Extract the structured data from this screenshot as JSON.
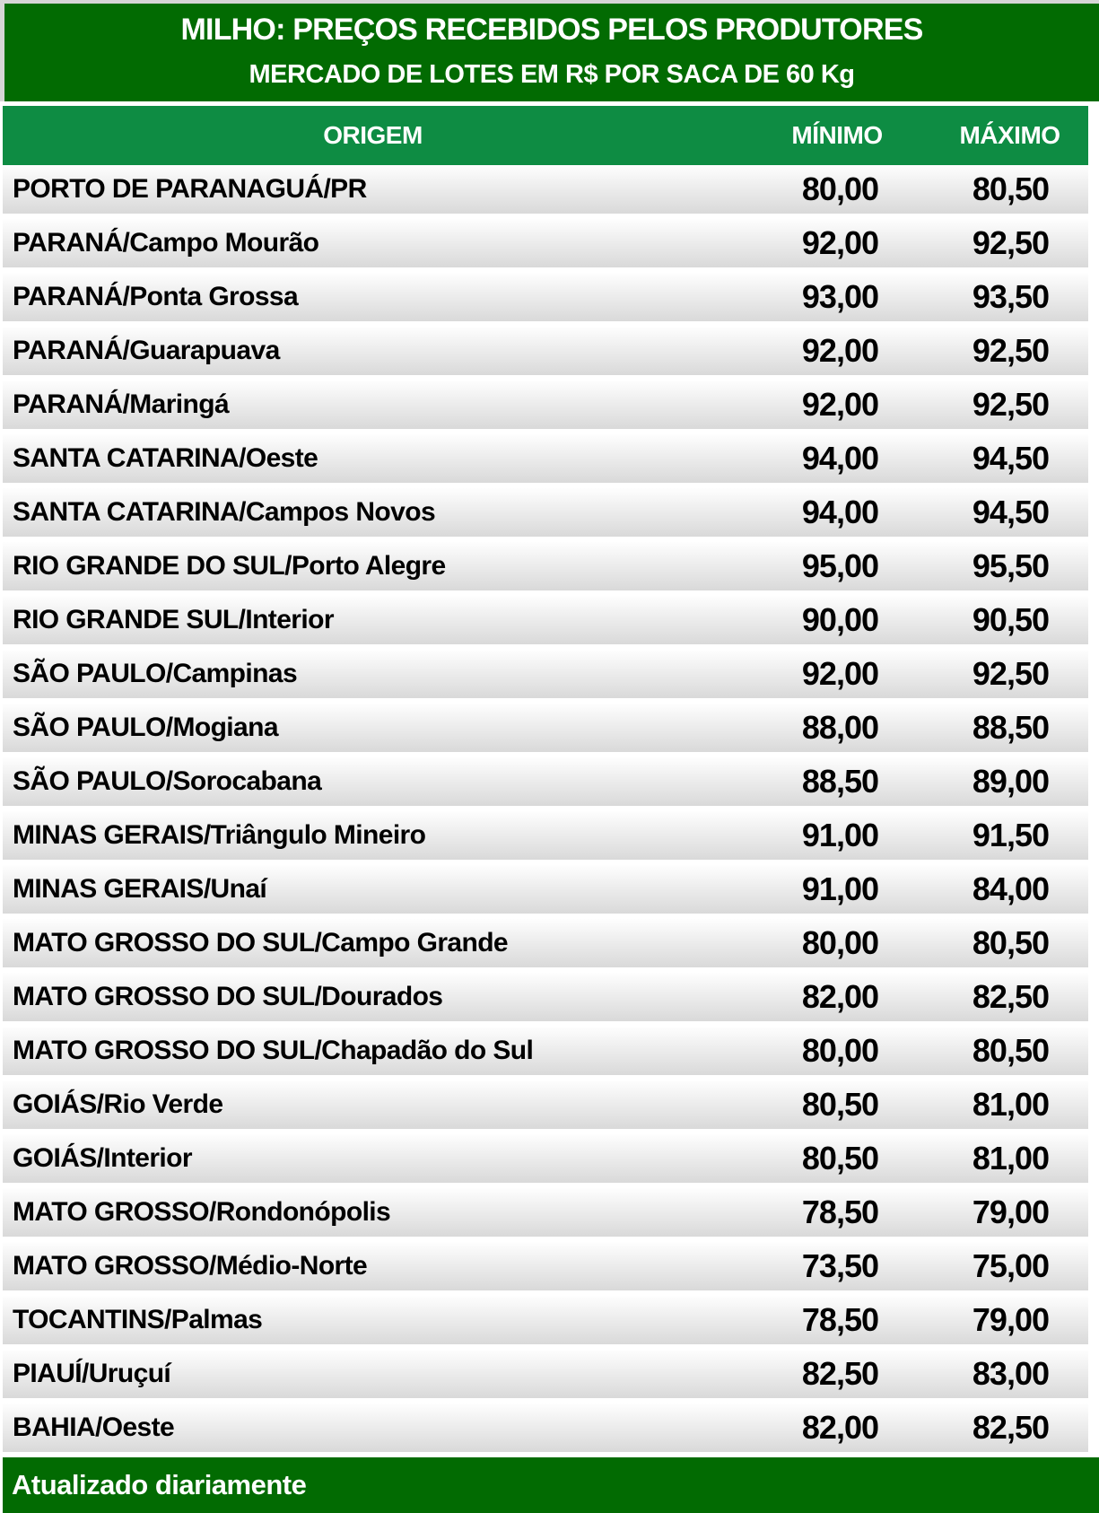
{
  "header": {
    "title": "MILHO: PREÇOS RECEBIDOS PELOS PRODUTORES",
    "subtitle": "MERCADO DE LOTES EM R$ POR SACA DE 60 Kg"
  },
  "table": {
    "columns": [
      "ORIGEM",
      "MÍNIMO",
      "MÁXIMO"
    ],
    "rows": [
      {
        "origem": "PORTO DE PARANAGUÁ/PR",
        "minimo": "80,00",
        "maximo": "80,50"
      },
      {
        "origem": "PARANÁ/Campo Mourão",
        "minimo": "92,00",
        "maximo": "92,50"
      },
      {
        "origem": "PARANÁ/Ponta Grossa",
        "minimo": "93,00",
        "maximo": "93,50"
      },
      {
        "origem": "PARANÁ/Guarapuava",
        "minimo": "92,00",
        "maximo": "92,50"
      },
      {
        "origem": "PARANÁ/Maringá",
        "minimo": "92,00",
        "maximo": "92,50"
      },
      {
        "origem": "SANTA CATARINA/Oeste",
        "minimo": "94,00",
        "maximo": "94,50"
      },
      {
        "origem": "SANTA CATARINA/Campos Novos",
        "minimo": "94,00",
        "maximo": "94,50"
      },
      {
        "origem": "RIO GRANDE DO SUL/Porto Alegre",
        "minimo": "95,00",
        "maximo": "95,50"
      },
      {
        "origem": "RIO GRANDE SUL/Interior",
        "minimo": "90,00",
        "maximo": "90,50"
      },
      {
        "origem": "SÃO PAULO/Campinas",
        "minimo": "92,00",
        "maximo": "92,50"
      },
      {
        "origem": "SÃO PAULO/Mogiana",
        "minimo": "88,00",
        "maximo": "88,50"
      },
      {
        "origem": "SÃO PAULO/Sorocabana",
        "minimo": "88,50",
        "maximo": "89,00"
      },
      {
        "origem": "MINAS GERAIS/Triângulo Mineiro",
        "minimo": "91,00",
        "maximo": "91,50"
      },
      {
        "origem": "MINAS GERAIS/Unaí",
        "minimo": "91,00",
        "maximo": "84,00"
      },
      {
        "origem": "MATO GROSSO DO SUL/Campo Grande",
        "minimo": "80,00",
        "maximo": "80,50"
      },
      {
        "origem": "MATO GROSSO DO SUL/Dourados",
        "minimo": "82,00",
        "maximo": "82,50"
      },
      {
        "origem": "MATO GROSSO DO SUL/Chapadão do Sul",
        "minimo": "80,00",
        "maximo": "80,50"
      },
      {
        "origem": "GOIÁS/Rio Verde",
        "minimo": "80,50",
        "maximo": "81,00"
      },
      {
        "origem": "GOIÁS/Interior",
        "minimo": "80,50",
        "maximo": "81,00"
      },
      {
        "origem": "MATO GROSSO/Rondonópolis",
        "minimo": "78,50",
        "maximo": "79,00"
      },
      {
        "origem": "MATO GROSSO/Médio-Norte",
        "minimo": "73,50",
        "maximo": "75,00"
      },
      {
        "origem": "TOCANTINS/Palmas",
        "minimo": "78,50",
        "maximo": "79,00"
      },
      {
        "origem": "PIAUÍ/Uruçuí",
        "minimo": "82,50",
        "maximo": "83,00"
      },
      {
        "origem": "BAHIA/Oeste",
        "minimo": "82,00",
        "maximo": "82,50"
      }
    ]
  },
  "footer": {
    "note": "Atualizado diariamente"
  },
  "colors": {
    "title_bar_green": "#026B02",
    "header_row_green": "#0E8C43",
    "footer_green": "#026B02",
    "row_gradient_top": "#FEFEFE",
    "row_gradient_bottom": "#D9D9D9",
    "page_border_gray": "#D6D6D6",
    "header_text": "#FFFFFF",
    "row_text": "#000000"
  }
}
